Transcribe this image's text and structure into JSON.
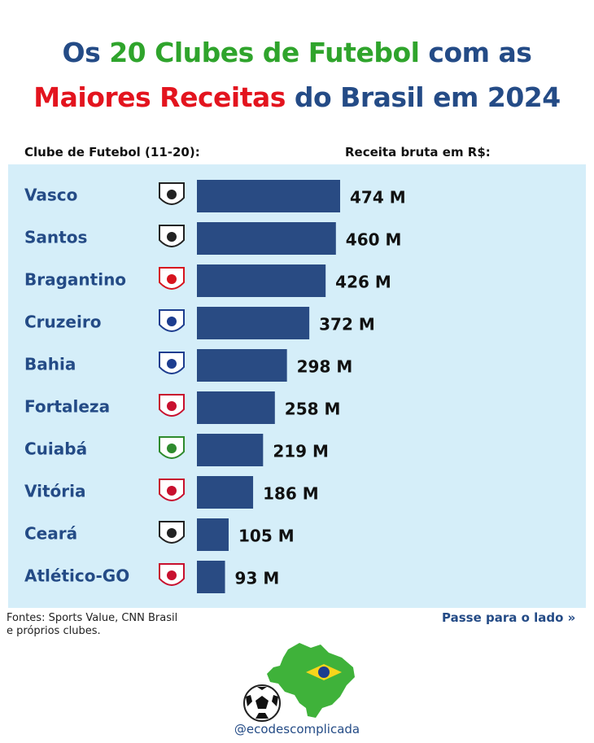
{
  "header": {
    "title_line1_part1": "Os ",
    "title_line1_part2": "20 Clubes de Futebol",
    "title_line1_part3": " com as",
    "title_line2_part1": "Maiores Receitas",
    "title_line2_part2": " do Brasil em 2024"
  },
  "columns": {
    "left": "Clube de Futebol (11-20):",
    "right": "Receita bruta em R$:"
  },
  "chart_data": {
    "type": "bar",
    "orientation": "horizontal",
    "categories": [
      "Vasco",
      "Santos",
      "Bragantino",
      "Cruzeiro",
      "Bahia",
      "Fortaleza",
      "Cuiabá",
      "Vitória",
      "Ceará",
      "Atlético-GO"
    ],
    "values": [
      474,
      460,
      426,
      372,
      298,
      258,
      219,
      186,
      105,
      93
    ],
    "value_labels": [
      "474 M",
      "460 M",
      "426 M",
      "372 M",
      "298 M",
      "258 M",
      "219 M",
      "186 M",
      "105 M",
      "93 M"
    ],
    "crest_icons": [
      "vasco-crest-icon",
      "santos-crest-icon",
      "bragantino-crest-icon",
      "cruzeiro-crest-icon",
      "bahia-crest-icon",
      "fortaleza-crest-icon",
      "cuiaba-crest-icon",
      "vitoria-crest-icon",
      "ceara-crest-icon",
      "atletico-go-crest-icon"
    ],
    "bar_color": "#294b83",
    "label_color": "#244b86",
    "value_color": "#111111",
    "background": "#d5eef9",
    "grid": false
  },
  "footer": {
    "sources_line1": "Fontes: Sports Value, CNN Brasil",
    "sources_line2": "e próprios clubes.",
    "next": "Passe para o lado",
    "next_icon": "double-chevron-right-icon",
    "handle": "@ecodescomplicada"
  },
  "colors": {
    "blue": "#244b86",
    "green": "#2fa42c",
    "red": "#e3141e"
  }
}
